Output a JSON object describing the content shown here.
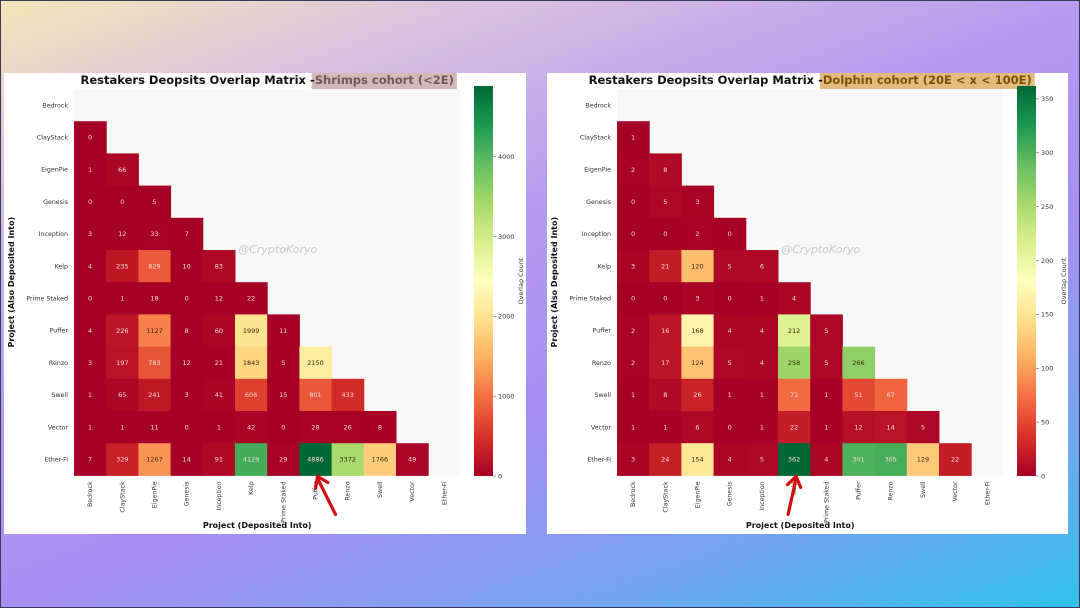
{
  "chart_data": [
    {
      "type": "heatmap",
      "title_prefix": "Restakers Deopsits Overlap Matrix - ",
      "title_highlight": "Shrimps cohort (<2E)",
      "highlight_color": "#d4b8b8",
      "xlabel": "Project (Deposited Into)",
      "ylabel": "Project (Also Deposited Into)",
      "colorbar_label": "Overlap Count",
      "colormap": "RdYlGn",
      "vmin": 0,
      "vmax": 4886,
      "colorbar_ticks": [
        0,
        1000,
        2000,
        3000,
        4000
      ],
      "watermark": "@CryptoKoryo",
      "annotation": "red arrow pointing to Ether-Fi / Puffer cell",
      "arrow_col": 7,
      "labels": [
        "Bedrock",
        "ClayStack",
        "EigenPie",
        "Genesis",
        "Inception",
        "Kelp",
        "Prime Staked",
        "Puffer",
        "Renzo",
        "Swell",
        "Vector",
        "Ether-Fi"
      ],
      "rows": [
        [],
        [
          0
        ],
        [
          1,
          66
        ],
        [
          0,
          0,
          5
        ],
        [
          3,
          12,
          33,
          7
        ],
        [
          4,
          235,
          829,
          10,
          83
        ],
        [
          0,
          1,
          18,
          0,
          12,
          22
        ],
        [
          4,
          226,
          1127,
          8,
          60,
          1999,
          11
        ],
        [
          3,
          197,
          783,
          12,
          21,
          1843,
          5,
          2150
        ],
        [
          1,
          65,
          241,
          3,
          41,
          606,
          15,
          801,
          433
        ],
        [
          1,
          1,
          11,
          0,
          1,
          42,
          0,
          28,
          26,
          8
        ],
        [
          7,
          329,
          1267,
          14,
          91,
          4129,
          29,
          4886,
          3372,
          1766,
          49
        ]
      ]
    },
    {
      "type": "heatmap",
      "title_prefix": "Restakers Deopsits Overlap Matrix - ",
      "title_highlight": "Dolphin cohort (20E < x < 100E)",
      "highlight_color": "#e2bb7e",
      "xlabel": "Project (Deposited Into)",
      "ylabel": "Project (Also Deposited Into)",
      "colorbar_label": "Overlap Count",
      "colormap": "RdYlGn",
      "vmin": 0,
      "vmax": 362,
      "colorbar_ticks": [
        0,
        50,
        100,
        150,
        200,
        250,
        300,
        350
      ],
      "watermark": "@CryptoKoryo",
      "annotation": "red arrow pointing to Ether-Fi / Kelp cell",
      "arrow_col": 5,
      "labels": [
        "Bedrock",
        "ClayStack",
        "EigenPie",
        "Genesis",
        "Inception",
        "Kelp",
        "Prime Staked",
        "Puffer",
        "Renzo",
        "Swell",
        "Vector",
        "Ether-Fi"
      ],
      "rows": [
        [],
        [
          1
        ],
        [
          2,
          8
        ],
        [
          0,
          5,
          3
        ],
        [
          0,
          0,
          2,
          0
        ],
        [
          3,
          21,
          120,
          5,
          6
        ],
        [
          0,
          0,
          3,
          0,
          1,
          4
        ],
        [
          2,
          16,
          168,
          4,
          4,
          212,
          5
        ],
        [
          2,
          17,
          124,
          5,
          4,
          258,
          5,
          266
        ],
        [
          1,
          8,
          26,
          1,
          1,
          71,
          1,
          51,
          67
        ],
        [
          1,
          1,
          6,
          0,
          1,
          22,
          1,
          12,
          14,
          5
        ],
        [
          3,
          24,
          154,
          4,
          5,
          362,
          4,
          301,
          305,
          129,
          22
        ]
      ]
    }
  ]
}
